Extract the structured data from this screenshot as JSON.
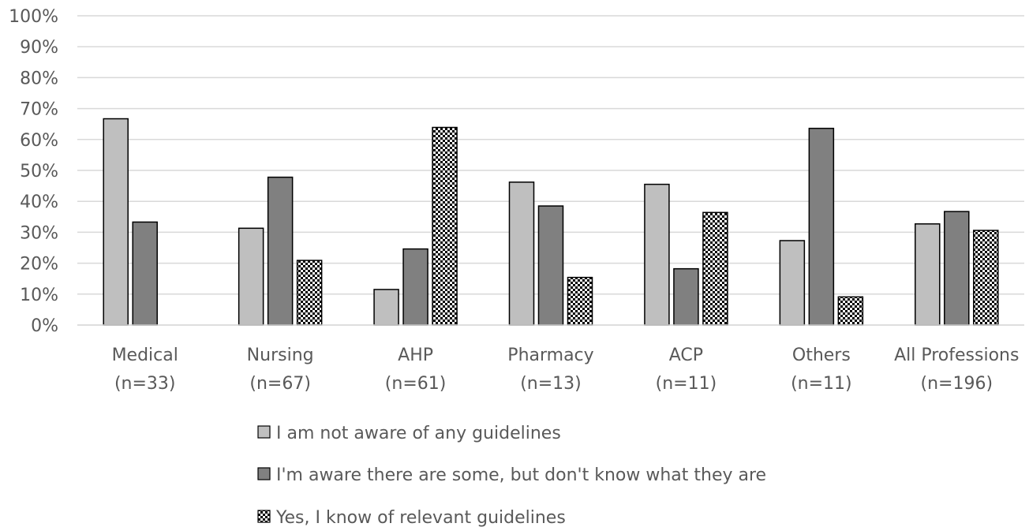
{
  "chart_data": {
    "type": "bar",
    "title": "",
    "xlabel": "",
    "ylabel": "",
    "ylim": [
      0,
      100
    ],
    "yticks": [
      "0%",
      "10%",
      "20%",
      "30%",
      "40%",
      "50%",
      "60%",
      "70%",
      "80%",
      "90%",
      "100%"
    ],
    "grid": true,
    "legend_position": "bottom",
    "categories": [
      [
        "Medical",
        "(n=33)"
      ],
      [
        "Nursing",
        "(n=67)"
      ],
      [
        "AHP",
        "(n=61)"
      ],
      [
        "Pharmacy",
        "(n=13)"
      ],
      [
        "ACP",
        "(n=11)"
      ],
      [
        "Others",
        "(n=11)"
      ],
      [
        "All Professions",
        "(n=196)"
      ]
    ],
    "series": [
      {
        "name": "I am not aware of any guidelines",
        "color": "#bfbfbf",
        "pattern": "solid",
        "values": [
          66.7,
          31.3,
          11.5,
          46.2,
          45.5,
          27.3,
          32.7
        ]
      },
      {
        "name": "I'm aware there are some, but don't know what they are",
        "color": "#808080",
        "pattern": "solid",
        "values": [
          33.3,
          47.8,
          24.6,
          38.5,
          18.2,
          63.6,
          36.7
        ]
      },
      {
        "name": "Yes, I know of relevant guidelines",
        "color": "#000000",
        "pattern": "checkerboard",
        "values": [
          0,
          20.9,
          63.9,
          15.4,
          36.4,
          9.1,
          30.6
        ]
      }
    ]
  }
}
